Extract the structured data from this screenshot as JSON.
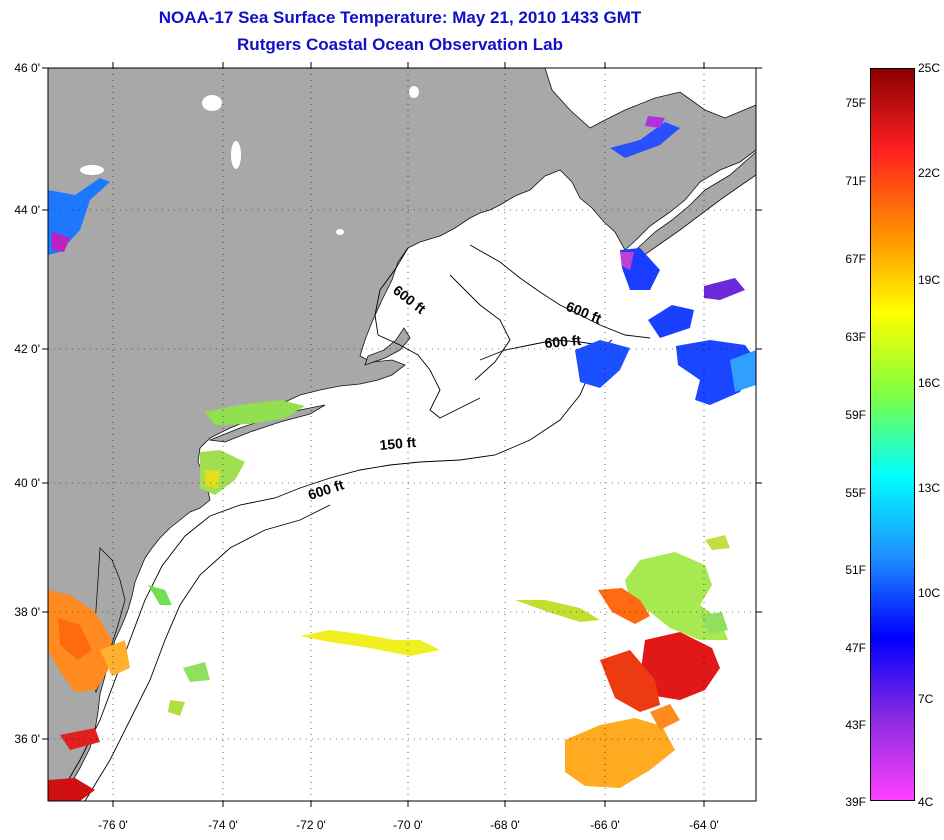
{
  "title_line1": "NOAA-17 Sea Surface Temperature:  May 21, 2010 1433 GMT",
  "title_line2": "Rutgers Coastal Ocean Observation Lab",
  "lat_labels": [
    "46 0'",
    "44 0'",
    "42 0'",
    "40 0'",
    "38 0'",
    "36 0'"
  ],
  "lon_labels": [
    "-76 0'",
    "-74 0'",
    "-72 0'",
    "-70 0'",
    "-68 0'",
    "-66 0'",
    "-64 0'"
  ],
  "contour_labels": [
    "600 ft",
    "600 ft",
    "600 ft",
    "150 ft",
    "600 ft"
  ],
  "colorbar": {
    "fahrenheit_labels": [
      "75F",
      "71F",
      "67F",
      "63F",
      "59F",
      "55F",
      "51F",
      "47F",
      "43F",
      "39F"
    ],
    "celsius_labels": [
      "25C",
      "22C",
      "19C",
      "16C",
      "13C",
      "10C",
      "7C",
      "4C"
    ],
    "colors": [
      "#8b0000",
      "#ff2020",
      "#ff8c00",
      "#ffff00",
      "#80ff40",
      "#00ffff",
      "#1e90ff",
      "#0000ff",
      "#8a2be2",
      "#ff40ff"
    ]
  },
  "colors": {
    "land": "#a8a8a8",
    "ocean": "#ffffff",
    "title": "#1010c8"
  }
}
